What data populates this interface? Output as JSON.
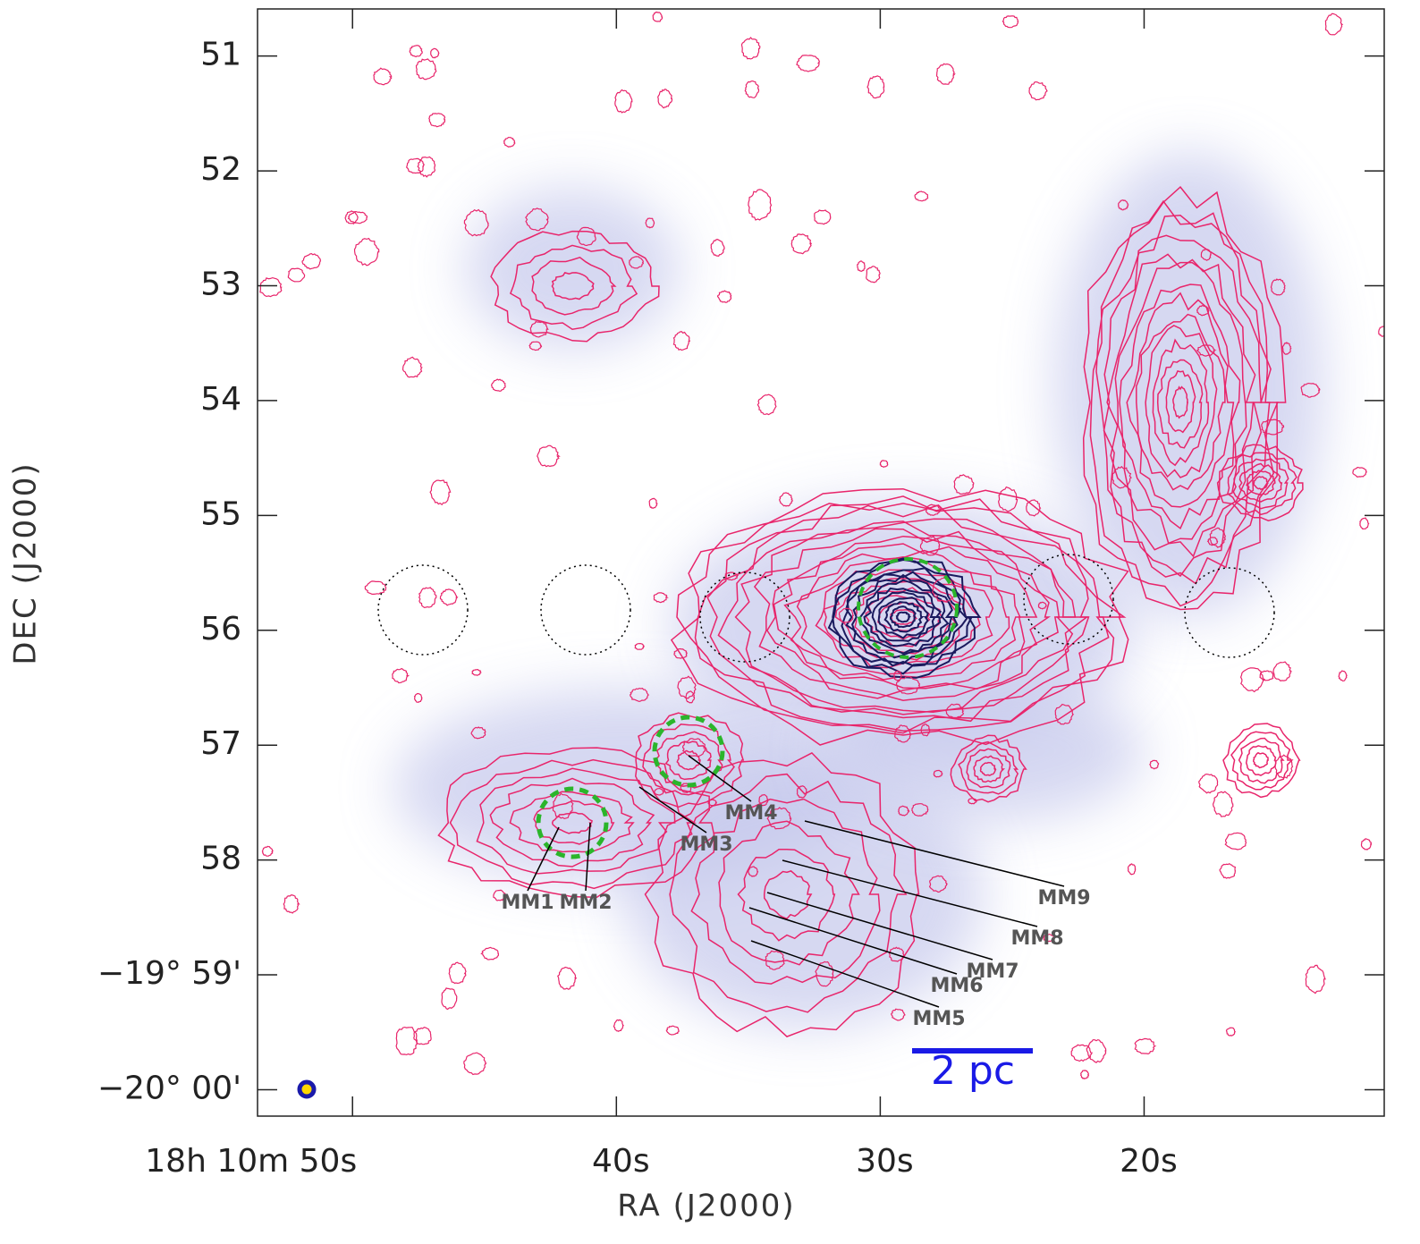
{
  "chart_data": {
    "type": "map",
    "x_label": "RA (J2000)",
    "y_label": "DEC (J2000)",
    "xlim": [
      53.6,
      10.9
    ],
    "xticks": [
      {
        "value": 50,
        "label": "18h 10m 50s"
      },
      {
        "value": 40,
        "label": "40s"
      },
      {
        "value": 30,
        "label": "30s"
      },
      {
        "value": 20,
        "label": "20s"
      }
    ],
    "ylim": [
      60.23,
      50.59
    ],
    "yticks": [
      51,
      52,
      53,
      54,
      55,
      56,
      57,
      58,
      {
        "value": 59,
        "label": "−19° 59'"
      },
      {
        "value": 60,
        "label": "−20° 00'"
      }
    ],
    "sources": [
      "MM1",
      "MM2",
      "MM3",
      "MM4",
      "MM5",
      "MM6",
      "MM7",
      "MM8",
      "MM9"
    ],
    "scale_bar": "2 pc",
    "contour_color": "#e8256b",
    "core_color": "#1a1a5e",
    "image_color": "#c5c8ec"
  }
}
